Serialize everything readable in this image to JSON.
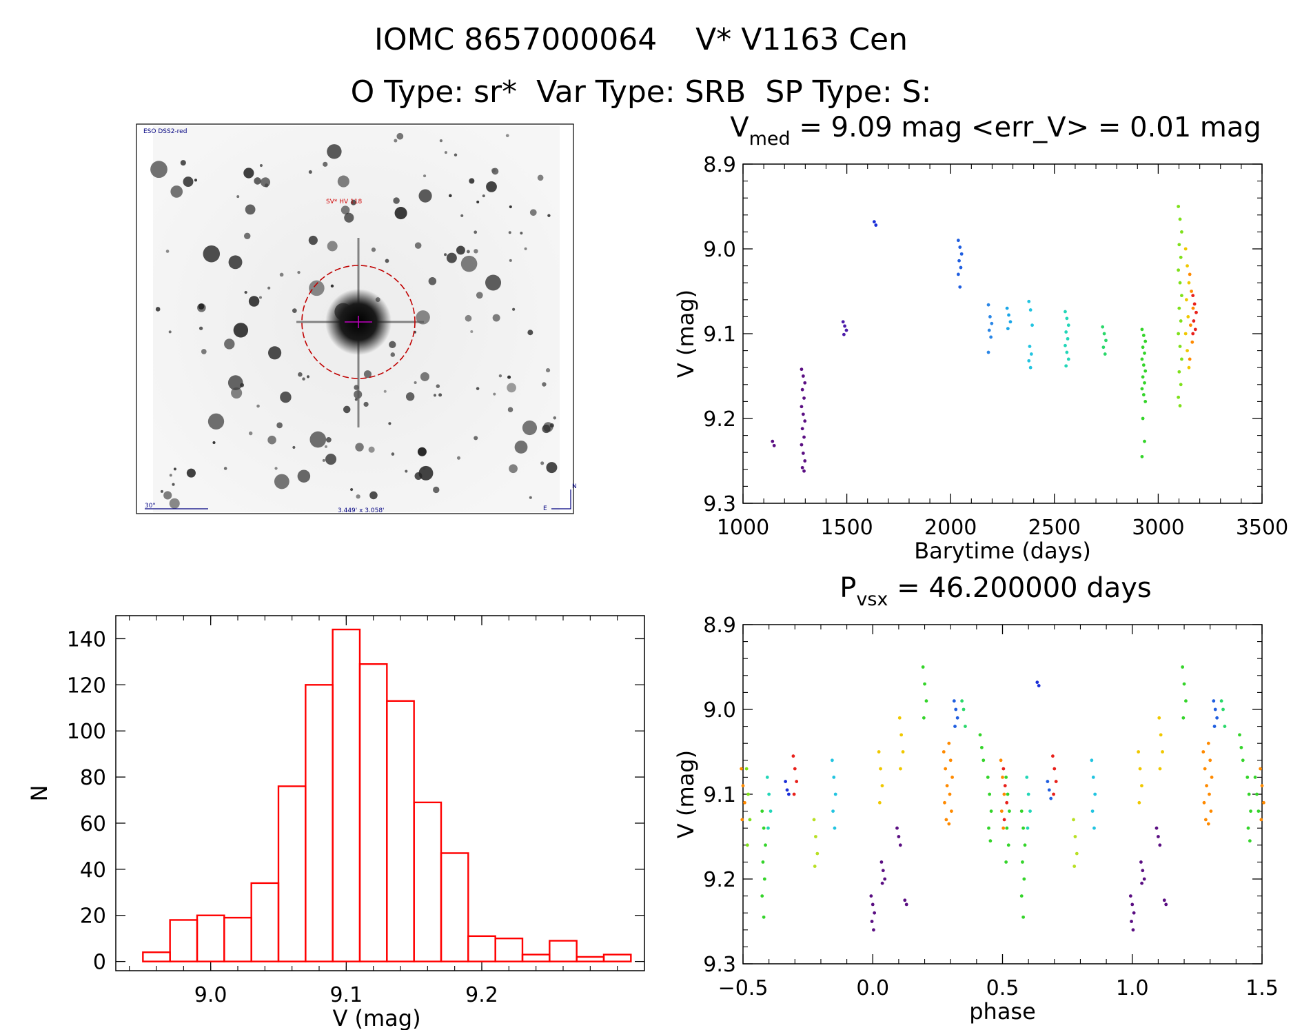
{
  "header": {
    "line1": "IOMC 8657000064    V* V1163 Cen",
    "line2": "O Type: sr*  Var Type: SRB  SP Type: S:"
  },
  "finder": {
    "source_label": "ESO DSS2-red",
    "target_label": "SV* HV 118",
    "scale_label": "30\"",
    "fov_label": "3.449' x 3.058'",
    "north_label": "N",
    "east_label": "E"
  },
  "chart_data": [
    {
      "id": "light_curve",
      "type": "scatter",
      "title": "V_med = 9.09 mag <err_V> = 0.01 mag",
      "title_parts": {
        "main": "V",
        "sub": "med",
        "rest": " = 9.09 mag <err_V> = 0.01 mag"
      },
      "xlabel": "Barytime (days)",
      "ylabel": "V (mag)",
      "xlim": [
        1000,
        3500
      ],
      "ylim": [
        9.3,
        8.9
      ],
      "xticks": [
        1000,
        1500,
        2000,
        2500,
        3000,
        3500
      ],
      "yticks": [
        8.9,
        9.0,
        9.1,
        9.2,
        9.3
      ],
      "ytick_labels": [
        "8.9",
        "9.0",
        "9.1",
        "9.2",
        "9.3"
      ],
      "groups": [
        {
          "x": 1150,
          "y": [
            9.227,
            9.232
          ],
          "color": "#5a0e82"
        },
        {
          "x": 1290,
          "y": [
            9.142,
            9.15,
            9.158,
            9.166,
            9.176,
            9.186,
            9.195,
            9.203,
            9.212,
            9.222,
            9.231,
            9.241,
            9.25,
            9.258,
            9.262
          ],
          "color": "#5a0e82"
        },
        {
          "x": 1490,
          "y": [
            9.086,
            9.091,
            9.096,
            9.101
          ],
          "color": "#4b1aa8"
        },
        {
          "x": 1640,
          "y": [
            8.968,
            8.972
          ],
          "color": "#1a2ed8"
        },
        {
          "x": 2045,
          "y": [
            8.99,
            8.998,
            9.006,
            9.014,
            9.022,
            9.03,
            9.045
          ],
          "color": "#1f5ee0"
        },
        {
          "x": 2190,
          "y": [
            9.066,
            9.08,
            9.088,
            9.096,
            9.104,
            9.122
          ],
          "color": "#2a86e6"
        },
        {
          "x": 2280,
          "y": [
            9.07,
            9.078,
            9.086,
            9.094
          ],
          "color": "#1aa6e8"
        },
        {
          "x": 2385,
          "y": [
            9.062,
            9.072,
            9.09,
            9.115,
            9.124,
            9.132,
            9.14
          ],
          "color": "#22c4e0"
        },
        {
          "x": 2560,
          "y": [
            9.074,
            9.082,
            9.09,
            9.098,
            9.106,
            9.114,
            9.122,
            9.13,
            9.138
          ],
          "color": "#22d6b8"
        },
        {
          "x": 2740,
          "y": [
            9.092,
            9.1,
            9.108,
            9.116,
            9.124
          ],
          "color": "#2ad86a"
        },
        {
          "x": 2930,
          "y": [
            9.095,
            9.102,
            9.109,
            9.116,
            9.123,
            9.13,
            9.137,
            9.144,
            9.151,
            9.158,
            9.165,
            9.172,
            9.18,
            9.2,
            9.227,
            9.245
          ],
          "color": "#34d42a"
        },
        {
          "x": 3105,
          "y": [
            8.95,
            8.965,
            8.98,
            8.995,
            9.01,
            9.025,
            9.04,
            9.055,
            9.07,
            9.085,
            9.1,
            9.115,
            9.13,
            9.145,
            9.16,
            9.175,
            9.185
          ],
          "color": "#7ee01a"
        },
        {
          "x": 3140,
          "y": [
            9.0,
            9.02,
            9.04,
            9.06,
            9.08,
            9.1,
            9.12,
            9.14
          ],
          "color": "#f0c800"
        },
        {
          "x": 3160,
          "y": [
            9.03,
            9.05,
            9.07,
            9.09,
            9.11,
            9.13
          ],
          "color": "#ff8a00"
        },
        {
          "x": 3175,
          "y": [
            9.055,
            9.065,
            9.075,
            9.085,
            9.095,
            9.1
          ],
          "color": "#e8201a"
        }
      ]
    },
    {
      "id": "phased_curve",
      "type": "scatter",
      "title": "P_vsx = 46.200000 days",
      "title_parts": {
        "main": "P",
        "sub": "vsx",
        "rest": " = 46.200000 days"
      },
      "xlabel": "phase",
      "ylabel": "V (mag)",
      "xlim": [
        -0.5,
        1.5
      ],
      "ylim": [
        9.3,
        8.9
      ],
      "xticks": [
        -0.5,
        0.0,
        0.5,
        1.0,
        1.5
      ],
      "xtick_labels": [
        "−0.5",
        "0.0",
        "0.5",
        "1.0",
        "1.5"
      ],
      "yticks": [
        8.9,
        9.0,
        9.1,
        9.2,
        9.3
      ],
      "ytick_labels": [
        "8.9",
        "9.0",
        "9.1",
        "9.2",
        "9.3"
      ],
      "groups": [
        {
          "x": 0.0,
          "y": [
            9.22,
            9.23,
            9.24,
            9.25,
            9.26
          ],
          "color": "#5a0e82"
        },
        {
          "x": 0.04,
          "y": [
            9.18,
            9.19,
            9.2,
            9.205
          ],
          "color": "#5a0e82"
        },
        {
          "x": 0.1,
          "y": [
            9.14,
            9.15,
            9.16
          ],
          "color": "#5a0e82"
        },
        {
          "x": 0.13,
          "y": [
            9.225,
            9.23
          ],
          "color": "#5a0e82"
        },
        {
          "x": 0.64,
          "y": [
            8.968,
            8.972
          ],
          "color": "#1a2ed8"
        },
        {
          "x": -0.33,
          "y": [
            9.085,
            9.095,
            9.1
          ],
          "color": "#1a2ed8"
        },
        {
          "x": 0.32,
          "y": [
            8.99,
            9.0,
            9.01,
            9.02
          ],
          "color": "#1f5ee0"
        },
        {
          "x": 0.68,
          "y": [
            9.085,
            9.095,
            9.105
          ],
          "color": "#1f5ee0"
        },
        {
          "x": 0.85,
          "y": [
            9.06,
            9.08,
            9.1,
            9.12,
            9.14
          ],
          "color": "#22c4e0"
        },
        {
          "x": -0.15,
          "y": [
            9.06,
            9.08,
            9.1,
            9.12,
            9.14
          ],
          "color": "#22c4e0"
        },
        {
          "x": 0.6,
          "y": [
            9.08,
            9.1,
            9.12,
            9.14
          ],
          "color": "#22d6b8"
        },
        {
          "x": -0.4,
          "y": [
            9.08,
            9.1,
            9.12,
            9.14
          ],
          "color": "#22d6b8"
        },
        {
          "x": 0.35,
          "y": [
            8.99,
            9.0,
            9.02
          ],
          "color": "#2ad86a"
        },
        {
          "x": 0.42,
          "y": [
            9.03,
            9.045,
            9.06
          ],
          "color": "#34d42a"
        },
        {
          "x": 0.2,
          "y": [
            8.95,
            8.97,
            8.99,
            9.01
          ],
          "color": "#34d42a"
        },
        {
          "x": 0.45,
          "y": [
            9.08,
            9.1,
            9.12,
            9.14,
            9.155
          ],
          "color": "#34d42a"
        },
        {
          "x": 0.52,
          "y": [
            9.08,
            9.1,
            9.12,
            9.14,
            9.16,
            9.18
          ],
          "color": "#34d42a"
        },
        {
          "x": 0.58,
          "y": [
            9.12,
            9.14,
            9.16,
            9.18,
            9.2,
            9.22,
            9.245
          ],
          "color": "#34d42a"
        },
        {
          "x": -0.42,
          "y": [
            9.12,
            9.14,
            9.16,
            9.18,
            9.2,
            9.22,
            9.245
          ],
          "color": "#34d42a"
        },
        {
          "x": -0.48,
          "y": [
            9.07,
            9.1,
            9.13,
            9.16
          ],
          "color": "#7ee01a"
        },
        {
          "x": -0.22,
          "y": [
            9.13,
            9.15,
            9.17,
            9.185
          ],
          "color": "#b8e024"
        },
        {
          "x": 0.78,
          "y": [
            9.13,
            9.15,
            9.17,
            9.185
          ],
          "color": "#b8e024"
        },
        {
          "x": 0.03,
          "y": [
            9.05,
            9.07,
            9.09,
            9.11
          ],
          "color": "#f0c800"
        },
        {
          "x": 0.11,
          "y": [
            9.01,
            9.03,
            9.05,
            9.07
          ],
          "color": "#f0c800"
        },
        {
          "x": 0.28,
          "y": [
            9.05,
            9.07,
            9.09,
            9.11,
            9.13
          ],
          "color": "#ff8a00"
        },
        {
          "x": 0.5,
          "y": [
            9.06,
            9.08,
            9.1,
            9.12,
            9.14
          ],
          "color": "#ff8a00"
        },
        {
          "x": -0.5,
          "y": [
            9.07,
            9.09,
            9.11,
            9.13
          ],
          "color": "#ff8a00"
        },
        {
          "x": 0.3,
          "y": [
            9.04,
            9.06,
            9.08,
            9.1,
            9.12,
            9.135
          ],
          "color": "#ff8a00"
        },
        {
          "x": 0.51,
          "y": [
            9.07,
            9.09,
            9.11,
            9.13
          ],
          "color": "#e8201a"
        },
        {
          "x": 0.7,
          "y": [
            9.055,
            9.07,
            9.085,
            9.1
          ],
          "color": "#e8201a"
        },
        {
          "x": -0.3,
          "y": [
            9.055,
            9.07,
            9.085,
            9.1
          ],
          "color": "#e8201a"
        },
        {
          "x": 1.0,
          "y": [
            9.22,
            9.23,
            9.24,
            9.25,
            9.26
          ],
          "color": "#5a0e82"
        },
        {
          "x": 1.04,
          "y": [
            9.18,
            9.19,
            9.2,
            9.205
          ],
          "color": "#5a0e82"
        },
        {
          "x": 1.1,
          "y": [
            9.14,
            9.15,
            9.16
          ],
          "color": "#5a0e82"
        },
        {
          "x": 1.13,
          "y": [
            9.225,
            9.23
          ],
          "color": "#5a0e82"
        },
        {
          "x": 1.32,
          "y": [
            8.99,
            9.0,
            9.01,
            9.02
          ],
          "color": "#1f5ee0"
        },
        {
          "x": 1.35,
          "y": [
            8.99,
            9.0,
            9.02
          ],
          "color": "#2ad86a"
        },
        {
          "x": 1.42,
          "y": [
            9.03,
            9.045,
            9.06
          ],
          "color": "#34d42a"
        },
        {
          "x": 1.2,
          "y": [
            8.95,
            8.97,
            8.99,
            9.01
          ],
          "color": "#34d42a"
        },
        {
          "x": 1.45,
          "y": [
            9.08,
            9.1,
            9.12,
            9.14,
            9.155
          ],
          "color": "#34d42a"
        },
        {
          "x": 1.03,
          "y": [
            9.05,
            9.07,
            9.09,
            9.11
          ],
          "color": "#f0c800"
        },
        {
          "x": 1.11,
          "y": [
            9.01,
            9.03,
            9.05,
            9.07
          ],
          "color": "#f0c800"
        },
        {
          "x": 1.28,
          "y": [
            9.05,
            9.07,
            9.09,
            9.11,
            9.13
          ],
          "color": "#ff8a00"
        },
        {
          "x": 1.3,
          "y": [
            9.04,
            9.06,
            9.08,
            9.1,
            9.12,
            9.135
          ],
          "color": "#ff8a00"
        },
        {
          "x": 1.48,
          "y": [
            9.08,
            9.1,
            9.12
          ],
          "color": "#34d42a"
        },
        {
          "x": 1.5,
          "y": [
            9.07,
            9.09,
            9.11,
            9.13
          ],
          "color": "#ff8a00"
        }
      ]
    },
    {
      "id": "histogram",
      "type": "bar",
      "title": "",
      "xlabel": "V (mag)",
      "ylabel": "N",
      "xlim": [
        9.03,
        9.39
      ],
      "ylim": [
        -4,
        150
      ],
      "xticks": [
        9.0,
        9.1,
        9.2
      ],
      "xtick_labels": [
        "9.0",
        "9.1",
        "9.2"
      ],
      "yticks": [
        0,
        20,
        40,
        60,
        80,
        100,
        120,
        140
      ],
      "ytick_labels": [
        "0",
        "20",
        "40",
        "60",
        "80",
        "100",
        "120",
        "140"
      ],
      "bar_color": "#ff0000",
      "bins": [
        {
          "x0": 8.95,
          "x1": 8.97,
          "value": 4
        },
        {
          "x0": 8.97,
          "x1": 8.99,
          "value": 18
        },
        {
          "x0": 8.99,
          "x1": 9.01,
          "value": 20
        },
        {
          "x0": 9.01,
          "x1": 9.03,
          "value": 19
        },
        {
          "x0": 9.03,
          "x1": 9.05,
          "value": 34
        },
        {
          "x0": 9.05,
          "x1": 9.07,
          "value": 76
        },
        {
          "x0": 9.07,
          "x1": 9.09,
          "value": 120
        },
        {
          "x0": 9.09,
          "x1": 9.11,
          "value": 144
        },
        {
          "x0": 9.11,
          "x1": 9.13,
          "value": 129
        },
        {
          "x0": 9.13,
          "x1": 9.15,
          "value": 113
        },
        {
          "x0": 9.15,
          "x1": 9.17,
          "value": 69
        },
        {
          "x0": 9.17,
          "x1": 9.19,
          "value": 47
        },
        {
          "x0": 9.19,
          "x1": 9.21,
          "value": 11
        },
        {
          "x0": 9.21,
          "x1": 9.23,
          "value": 10
        },
        {
          "x0": 9.23,
          "x1": 9.25,
          "value": 3
        },
        {
          "x0": 9.25,
          "x1": 9.27,
          "value": 9
        },
        {
          "x0": 9.27,
          "x1": 9.29,
          "value": 2
        },
        {
          "x0": 9.29,
          "x1": 9.31,
          "value": 3
        }
      ]
    }
  ]
}
